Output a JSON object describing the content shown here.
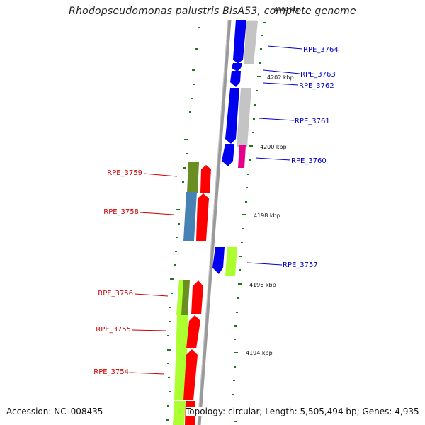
{
  "title": "Rhodopseudomonas palustris BisA53, complete genome",
  "footer": {
    "accession": "Accession: NC_008435",
    "topology": "Topology: circular; Length: 5,505,494 bp; Genes: 4,935"
  },
  "kbp_labels": [
    "4204 kbp",
    "4202 kbp",
    "4200 kbp",
    "4198 kbp",
    "4196 kbp",
    "4194 kbp"
  ],
  "genes_right": [
    "RPE_3764",
    "RPE_3763",
    "RPE_3762",
    "RPE_3761",
    "RPE_3760",
    "RPE_3757"
  ],
  "genes_left": [
    "RPE_3759",
    "RPE_3758",
    "RPE_3756",
    "RPE_3755",
    "RPE_3754"
  ],
  "colors": {
    "forward_cds": "#0000ee",
    "reverse_cds": "#ff0000",
    "category_gray": "#c4c4c4",
    "category_magenta": "#e6008c",
    "category_olive": "#6b8e23",
    "category_steelblue": "#4682b4",
    "category_lime": "#adff2f",
    "tick": "#1a7a1a",
    "right_label": "#0000cc",
    "left_label": "#cc0000"
  }
}
